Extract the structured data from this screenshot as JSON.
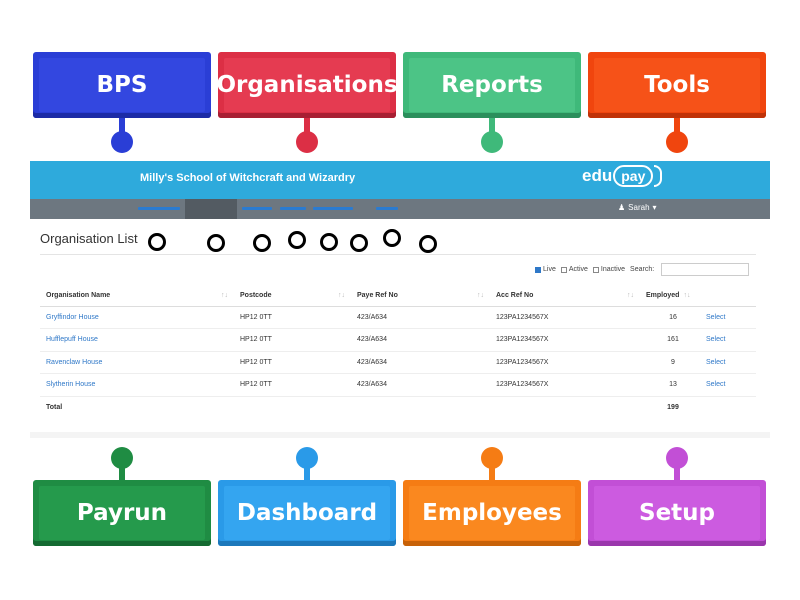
{
  "labels": {
    "top": [
      "BPS",
      "Organisations",
      "Reports",
      "Tools"
    ],
    "bottom": [
      "Payrun",
      "Dashboard",
      "Employees",
      "Setup"
    ]
  },
  "colors": {
    "bps": "#2a3ed6",
    "organisations": "#dc2f45",
    "reports": "#3fb97a",
    "tools": "#f0450e",
    "payrun": "#1f8c43",
    "dashboard": "#2a9ae8",
    "employees": "#f57c14",
    "setup": "#c24fd6",
    "header": "#2eaadc",
    "navbar": "#6d7780",
    "link": "#2f78c8"
  },
  "app": {
    "school_name": "Milly's School of Witchcraft and Wizardry",
    "logo_text": "edu",
    "logo_pay": "pay",
    "user_name": "Sarah",
    "user_icon": "user-icon",
    "user_caret": "▾"
  },
  "page": {
    "title": "Organisation List",
    "filters": {
      "live": "Live",
      "active": "Active",
      "inactive": "Inactive",
      "search_label": "Search:",
      "live_checked": true,
      "active_checked": false,
      "inactive_checked": false
    }
  },
  "table": {
    "columns": [
      "Organisation Name",
      "Postcode",
      "Paye Ref No",
      "Acc Ref No",
      "Employed"
    ],
    "sort_icon": "↑↓",
    "rows": [
      {
        "name": "Gryffindor House",
        "postcode": "HP12 0TT",
        "paye": "423/A634",
        "acc": "123PA1234567X",
        "employed": "16",
        "action": "Select"
      },
      {
        "name": "Hufflepuff House",
        "postcode": "HP12 0TT",
        "paye": "423/A634",
        "acc": "123PA1234567X",
        "employed": "161",
        "action": "Select"
      },
      {
        "name": "Ravenclaw House",
        "postcode": "HP12 0TT",
        "paye": "423/A634",
        "acc": "123PA1234567X",
        "employed": "9",
        "action": "Select"
      },
      {
        "name": "Slytherin House",
        "postcode": "HP12 0TT",
        "paye": "423/A634",
        "acc": "123PA1234567X",
        "employed": "13",
        "action": "Select"
      }
    ],
    "total_label": "Total",
    "total_employed": "199"
  }
}
